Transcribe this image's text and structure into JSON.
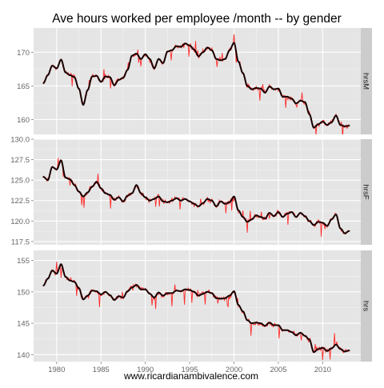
{
  "chart_data": {
    "type": "line",
    "title": "Ave hours worked per employee /month -- by gender",
    "xlabel": "www.ricardianambivalence.com",
    "ylabel": "",
    "x_ticks": [
      1980,
      1985,
      1990,
      1995,
      2000,
      2005,
      2010
    ],
    "xlim": [
      1977.4,
      2014.3
    ],
    "grid": true,
    "series_colors": {
      "raw": "#ff2a2a",
      "smooth": "#1a0000"
    },
    "colors": {
      "panel_bg": "#e5e5e5",
      "strip_bg": "#cccccc",
      "grid_major": "#ffffff",
      "grid_minor": "#f2f2f2",
      "tick_text": "#666666"
    },
    "facets": [
      {
        "strip": "hrsM",
        "ylim": [
          157.8,
          173.6
        ],
        "y_ticks": [
          "160",
          "165",
          "170"
        ],
        "y_tick_values": [
          160,
          165,
          170
        ],
        "series": [
          {
            "values": [
              [
                1978.5,
                165.4
              ],
              [
                1979.0,
                166.6
              ],
              [
                1979.5,
                168.0
              ],
              [
                1980.0,
                167.6
              ],
              [
                1980.5,
                168.9
              ],
              [
                1981.0,
                167.0
              ],
              [
                1981.5,
                166.6
              ],
              [
                1982.0,
                166.3
              ],
              [
                1982.5,
                164.6
              ],
              [
                1983.0,
                162.2
              ],
              [
                1983.5,
                164.4
              ],
              [
                1984.0,
                166.4
              ],
              [
                1984.5,
                166.5
              ],
              [
                1985.0,
                165.6
              ],
              [
                1985.5,
                166.4
              ],
              [
                1986.0,
                166.3
              ],
              [
                1986.5,
                165.1
              ],
              [
                1987.0,
                165.9
              ],
              [
                1987.5,
                166.2
              ],
              [
                1988.0,
                167.4
              ],
              [
                1988.5,
                169.5
              ],
              [
                1989.0,
                169.8
              ],
              [
                1989.5,
                169.0
              ],
              [
                1990.0,
                169.7
              ],
              [
                1990.5,
                169.0
              ],
              [
                1991.0,
                167.6
              ],
              [
                1991.5,
                169.0
              ],
              [
                1992.0,
                168.4
              ],
              [
                1992.5,
                170.1
              ],
              [
                1993.0,
                170.3
              ],
              [
                1993.5,
                170.9
              ],
              [
                1994.0,
                170.8
              ],
              [
                1994.5,
                171.3
              ],
              [
                1995.0,
                171.0
              ],
              [
                1995.5,
                170.4
              ],
              [
                1996.0,
                169.4
              ],
              [
                1996.5,
                170.0
              ],
              [
                1997.0,
                170.7
              ],
              [
                1997.5,
                170.3
              ],
              [
                1998.0,
                169.0
              ],
              [
                1998.5,
                168.8
              ],
              [
                1999.0,
                169.0
              ],
              [
                1999.5,
                170.3
              ],
              [
                2000.0,
                171.4
              ],
              [
                2000.5,
                168.6
              ],
              [
                2001.0,
                166.9
              ],
              [
                2001.5,
                165.0
              ],
              [
                2002.0,
                164.5
              ],
              [
                2002.5,
                164.7
              ],
              [
                2003.0,
                164.6
              ],
              [
                2003.5,
                164.0
              ],
              [
                2004.0,
                164.9
              ],
              [
                2004.5,
                164.5
              ],
              [
                2005.0,
                164.6
              ],
              [
                2005.5,
                163.4
              ],
              [
                2006.0,
                163.4
              ],
              [
                2006.5,
                163.1
              ],
              [
                2007.0,
                162.4
              ],
              [
                2007.5,
                162.8
              ],
              [
                2008.0,
                162.6
              ],
              [
                2008.5,
                160.8
              ],
              [
                2009.0,
                158.8
              ],
              [
                2009.5,
                159.3
              ],
              [
                2010.0,
                159.7
              ],
              [
                2010.5,
                159.2
              ],
              [
                2011.0,
                159.6
              ],
              [
                2011.5,
                160.6
              ],
              [
                2012.0,
                159.2
              ],
              [
                2012.5,
                159.0
              ],
              [
                2013.0,
                159.1
              ]
            ]
          }
        ]
      },
      {
        "strip": "hrsF",
        "ylim": [
          117.1,
          130.0
        ],
        "y_ticks": [
          "117.5",
          "120.0",
          "122.5",
          "125.0",
          "127.5",
          "130.0"
        ],
        "y_tick_values": [
          117.5,
          120.0,
          122.5,
          125.0,
          127.5,
          130.0
        ],
        "series": [
          {
            "values": [
              [
                1978.5,
                125.4
              ],
              [
                1979.0,
                125.0
              ],
              [
                1979.5,
                126.6
              ],
              [
                1980.0,
                126.3
              ],
              [
                1980.5,
                127.4
              ],
              [
                1981.0,
                125.3
              ],
              [
                1981.5,
                125.1
              ],
              [
                1982.0,
                124.4
              ],
              [
                1982.5,
                123.6
              ],
              [
                1983.0,
                123.0
              ],
              [
                1983.5,
                123.5
              ],
              [
                1984.0,
                124.2
              ],
              [
                1984.5,
                124.8
              ],
              [
                1985.0,
                124.0
              ],
              [
                1985.5,
                123.4
              ],
              [
                1986.0,
                123.2
              ],
              [
                1986.5,
                122.6
              ],
              [
                1987.0,
                122.9
              ],
              [
                1987.5,
                122.4
              ],
              [
                1988.0,
                123.1
              ],
              [
                1988.5,
                123.4
              ],
              [
                1989.0,
                124.4
              ],
              [
                1989.5,
                123.4
              ],
              [
                1990.0,
                122.9
              ],
              [
                1990.5,
                122.5
              ],
              [
                1991.0,
                122.7
              ],
              [
                1991.5,
                123.0
              ],
              [
                1992.0,
                122.4
              ],
              [
                1992.5,
                122.3
              ],
              [
                1993.0,
                122.5
              ],
              [
                1993.5,
                122.8
              ],
              [
                1994.0,
                122.5
              ],
              [
                1994.5,
                122.7
              ],
              [
                1995.0,
                122.4
              ],
              [
                1995.5,
                122.1
              ],
              [
                1996.0,
                121.8
              ],
              [
                1996.5,
                122.2
              ],
              [
                1997.0,
                122.7
              ],
              [
                1997.5,
                122.5
              ],
              [
                1998.0,
                121.8
              ],
              [
                1998.5,
                122.4
              ],
              [
                1999.0,
                122.1
              ],
              [
                1999.5,
                122.3
              ],
              [
                2000.0,
                123.0
              ],
              [
                2000.5,
                121.3
              ],
              [
                2001.0,
                120.5
              ],
              [
                2001.5,
                119.9
              ],
              [
                2002.0,
                120.2
              ],
              [
                2002.5,
                120.7
              ],
              [
                2003.0,
                120.5
              ],
              [
                2003.5,
                120.3
              ],
              [
                2004.0,
                121.0
              ],
              [
                2004.5,
                120.6
              ],
              [
                2005.0,
                121.1
              ],
              [
                2005.5,
                120.5
              ],
              [
                2006.0,
                120.9
              ],
              [
                2006.5,
                121.1
              ],
              [
                2007.0,
                120.5
              ],
              [
                2007.5,
                121.0
              ],
              [
                2008.0,
                120.6
              ],
              [
                2008.5,
                120.0
              ],
              [
                2009.0,
                119.5
              ],
              [
                2009.5,
                119.9
              ],
              [
                2010.0,
                119.8
              ],
              [
                2010.5,
                119.4
              ],
              [
                2011.0,
                120.2
              ],
              [
                2011.5,
                120.8
              ],
              [
                2012.0,
                119.1
              ],
              [
                2012.5,
                118.5
              ],
              [
                2013.0,
                118.8
              ]
            ]
          }
        ]
      },
      {
        "strip": "hrs",
        "ylim": [
          138.9,
          156.6
        ],
        "y_ticks": [
          "140",
          "145",
          "150",
          "155"
        ],
        "y_tick_values": [
          140,
          145,
          150,
          155
        ],
        "series": [
          {
            "values": [
              [
                1978.5,
                151.0
              ],
              [
                1979.0,
                152.1
              ],
              [
                1979.5,
                153.4
              ],
              [
                1980.0,
                152.9
              ],
              [
                1980.5,
                154.4
              ],
              [
                1981.0,
                152.4
              ],
              [
                1981.5,
                151.8
              ],
              [
                1982.0,
                151.6
              ],
              [
                1982.5,
                150.6
              ],
              [
                1983.0,
                148.8
              ],
              [
                1983.5,
                149.4
              ],
              [
                1984.0,
                150.2
              ],
              [
                1984.5,
                150.1
              ],
              [
                1985.0,
                149.6
              ],
              [
                1985.5,
                150.0
              ],
              [
                1986.0,
                149.5
              ],
              [
                1986.5,
                148.7
              ],
              [
                1987.0,
                149.3
              ],
              [
                1987.5,
                149.1
              ],
              [
                1988.0,
                150.1
              ],
              [
                1988.5,
                150.7
              ],
              [
                1989.0,
                151.1
              ],
              [
                1989.5,
                150.4
              ],
              [
                1990.0,
                150.4
              ],
              [
                1990.5,
                149.7
              ],
              [
                1991.0,
                149.1
              ],
              [
                1991.5,
                149.9
              ],
              [
                1992.0,
                149.4
              ],
              [
                1992.5,
                149.8
              ],
              [
                1993.0,
                149.8
              ],
              [
                1993.5,
                150.2
              ],
              [
                1994.0,
                150.1
              ],
              [
                1994.5,
                150.4
              ],
              [
                1995.0,
                150.3
              ],
              [
                1995.5,
                150.0
              ],
              [
                1996.0,
                149.4
              ],
              [
                1996.5,
                149.7
              ],
              [
                1997.0,
                150.0
              ],
              [
                1997.5,
                149.8
              ],
              [
                1998.0,
                149.0
              ],
              [
                1998.5,
                148.9
              ],
              [
                1999.0,
                149.0
              ],
              [
                1999.5,
                149.4
              ],
              [
                2000.0,
                150.1
              ],
              [
                2000.5,
                147.9
              ],
              [
                2001.0,
                146.9
              ],
              [
                2001.5,
                145.5
              ],
              [
                2002.0,
                145.0
              ],
              [
                2002.5,
                145.1
              ],
              [
                2003.0,
                145.0
              ],
              [
                2003.5,
                144.6
              ],
              [
                2004.0,
                145.1
              ],
              [
                2004.5,
                144.7
              ],
              [
                2005.0,
                144.7
              ],
              [
                2005.5,
                143.9
              ],
              [
                2006.0,
                143.9
              ],
              [
                2006.5,
                143.6
              ],
              [
                2007.0,
                143.1
              ],
              [
                2007.5,
                143.5
              ],
              [
                2008.0,
                143.0
              ],
              [
                2008.5,
                142.4
              ],
              [
                2009.0,
                140.4
              ],
              [
                2009.5,
                140.9
              ],
              [
                2010.0,
                141.1
              ],
              [
                2010.5,
                140.6
              ],
              [
                2011.0,
                141.0
              ],
              [
                2011.5,
                141.6
              ],
              [
                2012.0,
                140.9
              ],
              [
                2012.5,
                140.5
              ],
              [
                2013.0,
                140.7
              ]
            ]
          }
        ]
      }
    ]
  }
}
